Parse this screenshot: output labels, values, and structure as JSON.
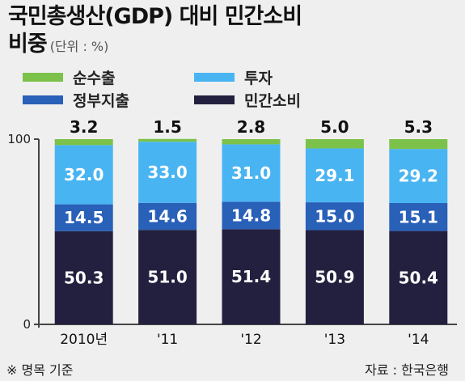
{
  "title_line1": "국민총생산(GDP) 대비 민간소비",
  "title_line2": "비중",
  "unit": "(단위 : %)",
  "note": "※ 명목 기준",
  "source": "자료 : 한국은행",
  "colors": {
    "net_exports": "#7cc24a",
    "investment": "#49b4f2",
    "government": "#2960b8",
    "private": "#23203f"
  },
  "chart_data": {
    "type": "bar",
    "stacked": true,
    "categories": [
      "2010년",
      "'11",
      "'12",
      "'13",
      "'14"
    ],
    "series": [
      {
        "name": "민간소비",
        "key": "private",
        "values": [
          50.3,
          51.0,
          51.4,
          50.9,
          50.4
        ]
      },
      {
        "name": "정부지출",
        "key": "government",
        "values": [
          14.5,
          14.6,
          14.8,
          15.0,
          15.1
        ]
      },
      {
        "name": "투자",
        "key": "investment",
        "values": [
          32.0,
          33.0,
          31.0,
          29.1,
          29.2
        ]
      },
      {
        "name": "순수출",
        "key": "net_exports",
        "values": [
          3.2,
          1.5,
          2.8,
          5.0,
          5.3
        ]
      }
    ],
    "ylim": [
      0,
      100
    ],
    "yticks": [
      "0",
      "100"
    ],
    "value_labels": {
      "private": [
        "50.3",
        "51.0",
        "51.4",
        "50.9",
        "50.4"
      ],
      "government": [
        "14.5",
        "14.6",
        "14.8",
        "15.0",
        "15.1"
      ],
      "investment": [
        "32.0",
        "33.0",
        "31.0",
        "29.1",
        "29.2"
      ],
      "net_exports": [
        "3.2",
        "1.5",
        "2.8",
        "5.0",
        "5.3"
      ]
    },
    "legend": [
      {
        "label": "순수출",
        "key": "net_exports"
      },
      {
        "label": "투자",
        "key": "investment"
      },
      {
        "label": "정부지출",
        "key": "government"
      },
      {
        "label": "민간소비",
        "key": "private"
      }
    ]
  }
}
